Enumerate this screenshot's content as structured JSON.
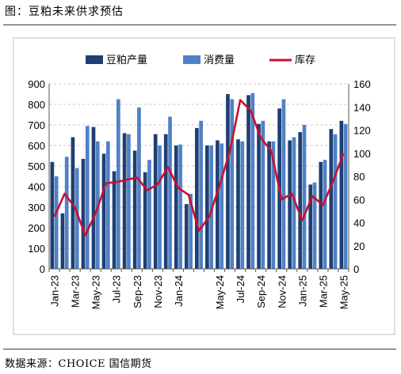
{
  "figure": {
    "title": "图：豆粕未来供求预估",
    "source": "数据来源：CHOICE 国信期货"
  },
  "chart_data": {
    "type": "bar",
    "categories": [
      "Jan-23",
      "Feb-23",
      "Mar-23",
      "Apr-23",
      "May-23",
      "Jun-23",
      "Jul-23",
      "Aug-23",
      "Sep-23",
      "Oct-23",
      "Nov-23",
      "Dec-23",
      "Jan-24",
      "Feb-24",
      "Mar-24",
      "Apr-24",
      "May-24",
      "Jun-24",
      "Jul-24",
      "Aug-24",
      "Sep-24",
      "Oct-24",
      "Nov-24",
      "Dec-24",
      "Jan-25",
      "Feb-25",
      "Mar-25",
      "Apr-25",
      "May-25"
    ],
    "tick_labels": [
      "Jan-23",
      "Mar-23",
      "May-23",
      "Jul-23",
      "Sep-23",
      "Nov-23",
      "Jan-24",
      "May-24",
      "Jul-24",
      "Sep-24",
      "Nov-24",
      "Jan-25",
      "Mar-25",
      "May-25"
    ],
    "tick_indices": [
      0,
      2,
      4,
      6,
      8,
      10,
      12,
      16,
      18,
      20,
      22,
      24,
      26,
      28
    ],
    "series": [
      {
        "name": "豆粕产量",
        "axis": "left",
        "kind": "bar",
        "color": "#1f3f72",
        "values": [
          520,
          270,
          640,
          535,
          690,
          560,
          475,
          660,
          575,
          470,
          655,
          655,
          600,
          315,
          685,
          600,
          625,
          850,
          630,
          845,
          705,
          620,
          780,
          625,
          665,
          410,
          520,
          680,
          720
        ]
      },
      {
        "name": "消费量",
        "axis": "left",
        "kind": "bar",
        "color": "#4f81c7",
        "values": [
          450,
          545,
          490,
          695,
          620,
          620,
          825,
          655,
          785,
          530,
          600,
          740,
          605,
          365,
          720,
          600,
          610,
          825,
          620,
          855,
          720,
          620,
          825,
          640,
          700,
          420,
          530,
          655,
          705
        ]
      },
      {
        "name": "库存",
        "axis": "right",
        "kind": "line",
        "color": "#c8102e",
        "values": [
          45,
          65,
          53,
          29,
          48,
          74,
          75,
          77,
          79,
          68,
          73,
          88,
          70,
          64,
          33,
          45,
          72,
          102,
          146,
          137,
          113,
          102,
          60,
          65,
          42,
          63,
          55,
          76,
          100
        ]
      }
    ],
    "y_left": {
      "min": 0,
      "max": 900,
      "step": 100
    },
    "y_right": {
      "min": 0,
      "max": 160,
      "step": 20
    },
    "grid": true,
    "legend_position": "top"
  }
}
